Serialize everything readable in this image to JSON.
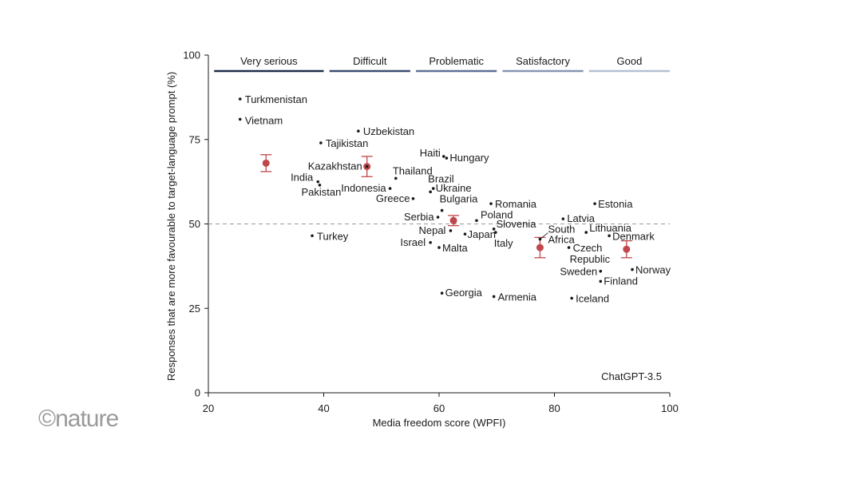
{
  "chart_data": {
    "type": "scatter",
    "xlabel": "Media freedom score (WPFI)",
    "ylabel": "Responses that are more favourable to target-language prompt (%)",
    "xlim": [
      20,
      100
    ],
    "ylim": [
      0,
      100
    ],
    "xticks": [
      20,
      40,
      60,
      80,
      100
    ],
    "yticks": [
      0,
      25,
      50,
      75,
      100
    ],
    "reference_line": 50,
    "model_label": "ChatGPT-3.5",
    "categories": [
      {
        "label": "Very serious",
        "x_range": [
          21,
          40
        ],
        "color": "#1f2d4a"
      },
      {
        "label": "Difficult",
        "x_range": [
          41,
          55
        ],
        "color": "#3a4c6e"
      },
      {
        "label": "Problematic",
        "x_range": [
          56,
          70
        ],
        "color": "#5e7092"
      },
      {
        "label": "Satisfactory",
        "x_range": [
          71,
          85
        ],
        "color": "#8796b2"
      },
      {
        "label": "Good",
        "x_range": [
          86,
          100
        ],
        "color": "#b4bfd2"
      }
    ],
    "points": [
      {
        "name": "Turkmenistan",
        "x": 25.5,
        "y": 87
      },
      {
        "name": "Vietnam",
        "x": 25.5,
        "y": 81
      },
      {
        "name": "Uzbekistan",
        "x": 46.0,
        "y": 77.5
      },
      {
        "name": "Tajikistan",
        "x": 39.5,
        "y": 74
      },
      {
        "name": "Haiti",
        "x": 60.8,
        "y": 70
      },
      {
        "name": "Hungary",
        "x": 61.3,
        "y": 69.5
      },
      {
        "name": "Kazakhstan",
        "x": 47.5,
        "y": 67
      },
      {
        "name": "Thailand",
        "x": 52.5,
        "y": 63.5
      },
      {
        "name": "India",
        "x": 39.0,
        "y": 62.5
      },
      {
        "name": "Pakistan",
        "x": 39.3,
        "y": 61.5
      },
      {
        "name": "Brazil",
        "x": 58.5,
        "y": 59.5
      },
      {
        "name": "Ukraine",
        "x": 59.0,
        "y": 60.5
      },
      {
        "name": "Indonesia",
        "x": 51.5,
        "y": 60.5
      },
      {
        "name": "Greece",
        "x": 55.5,
        "y": 57.5
      },
      {
        "name": "Bulgaria",
        "x": 60.5,
        "y": 54
      },
      {
        "name": "Romania",
        "x": 69.0,
        "y": 56
      },
      {
        "name": "Estonia",
        "x": 87.0,
        "y": 56
      },
      {
        "name": "Serbia",
        "x": 59.8,
        "y": 52
      },
      {
        "name": "Poland",
        "x": 66.5,
        "y": 51
      },
      {
        "name": "Latvia",
        "x": 81.5,
        "y": 51.5
      },
      {
        "name": "Slovenia",
        "x": 69.5,
        "y": 48.5
      },
      {
        "name": "Nepal",
        "x": 62.0,
        "y": 48
      },
      {
        "name": "Japan",
        "x": 64.5,
        "y": 47
      },
      {
        "name": "South Africa",
        "x": 77.5,
        "y": 45.5
      },
      {
        "name": "Lithuania",
        "x": 85.5,
        "y": 47.5
      },
      {
        "name": "Denmark",
        "x": 89.5,
        "y": 46.5
      },
      {
        "name": "Turkey",
        "x": 38.0,
        "y": 46.5
      },
      {
        "name": "Italy",
        "x": 69.8,
        "y": 47.5
      },
      {
        "name": "Israel",
        "x": 58.5,
        "y": 44.5
      },
      {
        "name": "Malta",
        "x": 60.0,
        "y": 43
      },
      {
        "name": "Czech Republic",
        "x": 82.5,
        "y": 43
      },
      {
        "name": "Sweden",
        "x": 88.0,
        "y": 36
      },
      {
        "name": "Norway",
        "x": 93.5,
        "y": 36.5
      },
      {
        "name": "Finland",
        "x": 88.0,
        "y": 33
      },
      {
        "name": "Georgia",
        "x": 60.5,
        "y": 29.5
      },
      {
        "name": "Armenia",
        "x": 69.5,
        "y": 28.5
      },
      {
        "name": "Iceland",
        "x": 83.0,
        "y": 28
      }
    ],
    "group_means": [
      {
        "x": 30.0,
        "y": 68,
        "err_low": 65.5,
        "err_high": 70.5
      },
      {
        "x": 47.5,
        "y": 67,
        "err_low": 64,
        "err_high": 70
      },
      {
        "x": 62.5,
        "y": 51,
        "err_low": 49.5,
        "err_high": 52.5
      },
      {
        "x": 77.5,
        "y": 43,
        "err_low": 40,
        "err_high": 46
      },
      {
        "x": 92.5,
        "y": 42.5,
        "err_low": 40,
        "err_high": 45
      }
    ],
    "mean_color": "#c0474b"
  },
  "watermark": "©nature"
}
